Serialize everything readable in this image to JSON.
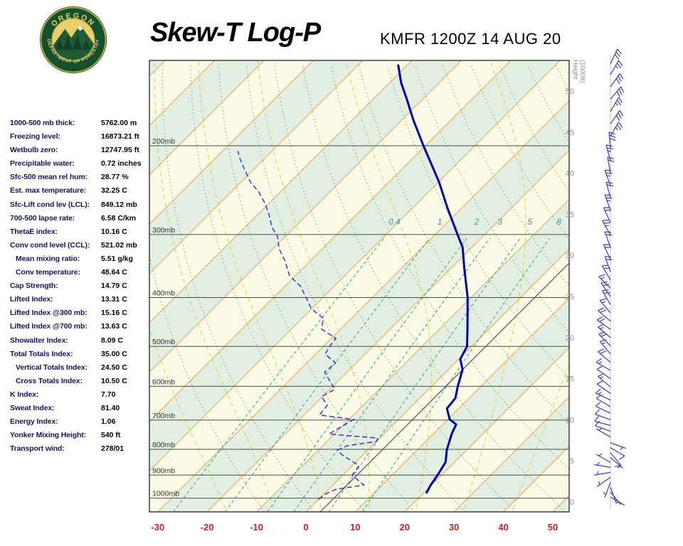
{
  "header": {
    "title": "Skew-T Log-P",
    "station_line": "KMFR 1200Z 14 AUG 20",
    "logo": {
      "arc_top": "OREGON",
      "arc_bottom": "DEPARTMENT OF FORESTRY"
    }
  },
  "indices": [
    {
      "label": "1000-500 mb thick:",
      "value": "5762.00 m",
      "indent": false
    },
    {
      "label": "Freezing level:",
      "value": "16873.21 ft",
      "indent": false
    },
    {
      "label": "Wetbulb zero:",
      "value": "12747.95 ft",
      "indent": false
    },
    {
      "label": "Precipitable water:",
      "value": "0.72 inches",
      "indent": false
    },
    {
      "label": "Sfc-500 mean rel hum:",
      "value": "28.77 %",
      "indent": false
    },
    {
      "label": "Est. max temperature:",
      "value": "32.25 C",
      "indent": false
    },
    {
      "label": "Sfc-Lift cond lev (LCL):",
      "value": "849.12 mb",
      "indent": false
    },
    {
      "label": "700-500 lapse rate:",
      "value": "6.58 C/km",
      "indent": false
    },
    {
      "label": "ThetaE index:",
      "value": "10.16 C",
      "indent": false
    },
    {
      "label": "Conv cond level (CCL):",
      "value": "521.02 mb",
      "indent": false
    },
    {
      "label": "Mean mixing ratio:",
      "value": "5.51 g/kg",
      "indent": true
    },
    {
      "label": "Conv temperature:",
      "value": "48.64 C",
      "indent": true
    },
    {
      "label": "Cap Strength:",
      "value": "14.79 C",
      "indent": false
    },
    {
      "label": "Lifted Index:",
      "value": "13.31 C",
      "indent": false
    },
    {
      "label": "Lifted Index @300 mb:",
      "value": "15.16 C",
      "indent": false
    },
    {
      "label": "Lifted Index @700 mb:",
      "value": "13.63 C",
      "indent": false
    },
    {
      "label": "Showalter Index:",
      "value": "8.09 C",
      "indent": false
    },
    {
      "label": "Total Totals Index:",
      "value": "35.00 C",
      "indent": false
    },
    {
      "label": "Vertical Totals Index:",
      "value": "24.50 C",
      "indent": true
    },
    {
      "label": "Cross Totals Index:",
      "value": "10.50 C",
      "indent": true
    },
    {
      "label": "K Index:",
      "value": "7.70",
      "indent": false
    },
    {
      "label": "Sweat Index:",
      "value": "81.40",
      "indent": false
    },
    {
      "label": "Energy Index:",
      "value": "1.06",
      "indent": false
    },
    {
      "label": "Yonker Mixing Height:",
      "value": "540 ft",
      "indent": false
    },
    {
      "label": "Transport wind:",
      "value": "278/01",
      "indent": false
    }
  ],
  "chart_data": {
    "type": "skewt",
    "station": "KMFR",
    "valid_time": "1200Z 14 AUG 20",
    "pressure_axis": {
      "levels_mb": [
        200,
        300,
        400,
        500,
        600,
        700,
        800,
        900,
        1000
      ],
      "label_suffix": "mb",
      "range_mb": [
        135,
        1065
      ]
    },
    "temp_axis_c": {
      "ticks": [
        -30,
        -20,
        -10,
        0,
        10,
        20,
        30,
        40,
        50
      ]
    },
    "height_axis": {
      "label_line1": "Height",
      "label_line2": "(1000ft)",
      "ticks_kft": [
        50,
        45,
        40,
        35,
        30,
        25,
        20,
        15,
        10,
        5,
        0
      ]
    },
    "mixing_ratio_g_kg": [
      0.4,
      1,
      2,
      3,
      5,
      8
    ],
    "moist_adiabat_starts_c": [
      -20,
      -10,
      0,
      10,
      20,
      30,
      40
    ],
    "dry_adiabat_theta_k": {
      "min": 260,
      "max": 450,
      "step": 10
    },
    "reference_isotherm_c": 2.9,
    "temperature_profile": {
      "units": [
        "mb",
        "C"
      ],
      "points": [
        [
          978,
          20.6
        ],
        [
          940,
          19.8
        ],
        [
          905,
          19.3
        ],
        [
          848,
          18.2
        ],
        [
          803,
          16.0
        ],
        [
          745,
          13.7
        ],
        [
          714,
          12.7
        ],
        [
          698,
          10.4
        ],
        [
          664,
          7.6
        ],
        [
          633,
          7.2
        ],
        [
          600,
          5.3
        ],
        [
          556,
          2.9
        ],
        [
          530,
          0.3
        ],
        [
          500,
          -0.9
        ],
        [
          455,
          -5.0
        ],
        [
          400,
          -10.7
        ],
        [
          350,
          -17.3
        ],
        [
          318,
          -21.9
        ],
        [
          300,
          -25.5
        ],
        [
          265,
          -33.1
        ],
        [
          236,
          -39.9
        ],
        [
          200,
          -50.4
        ],
        [
          178,
          -57.6
        ],
        [
          162,
          -63.1
        ],
        [
          150,
          -67.7
        ],
        [
          138,
          -72.0
        ]
      ]
    },
    "dewpoint_profile": {
      "units": [
        "mb",
        "C"
      ],
      "points": [
        [
          1005,
          0.0
        ],
        [
          978,
          0.5
        ],
        [
          960,
          1.5
        ],
        [
          942,
          6.3
        ],
        [
          900,
          1.9
        ],
        [
          862,
          1.4
        ],
        [
          820,
          -4.3
        ],
        [
          803,
          -6.1
        ],
        [
          787,
          -5.0
        ],
        [
          772,
          0.0
        ],
        [
          760,
          -0.4
        ],
        [
          746,
          -11.1
        ],
        [
          698,
          -9.1
        ],
        [
          684,
          -16.9
        ],
        [
          654,
          -17.3
        ],
        [
          629,
          -20.2
        ],
        [
          608,
          -19.0
        ],
        [
          592,
          -20.9
        ],
        [
          563,
          -24.5
        ],
        [
          539,
          -24.2
        ],
        [
          518,
          -28.1
        ],
        [
          500,
          -28.7
        ],
        [
          482,
          -29.1
        ],
        [
          462,
          -33.9
        ],
        [
          440,
          -35.7
        ],
        [
          421,
          -40.1
        ],
        [
          400,
          -43.4
        ],
        [
          380,
          -46.8
        ],
        [
          362,
          -51.2
        ],
        [
          339,
          -55.0
        ],
        [
          320,
          -58.8
        ],
        [
          303,
          -61.5
        ],
        [
          290,
          -64.6
        ],
        [
          274,
          -67.7
        ],
        [
          261,
          -70.6
        ],
        [
          247,
          -74.4
        ],
        [
          236,
          -78.1
        ],
        [
          222,
          -82.1
        ],
        [
          212,
          -85.0
        ],
        [
          205,
          -86.9
        ]
      ]
    },
    "winds": {
      "units": [
        "kft",
        "deg",
        "kt"
      ],
      "points": [
        [
          0.6,
          120,
          2
        ],
        [
          1.2,
          140,
          3
        ],
        [
          1.8,
          160,
          2
        ],
        [
          2.4,
          200,
          3
        ],
        [
          3,
          235,
          5
        ],
        [
          3.6,
          260,
          4
        ],
        [
          4.2,
          280,
          5
        ],
        [
          4.8,
          300,
          5
        ],
        [
          5.4,
          130,
          5
        ],
        [
          6,
          140,
          8
        ],
        [
          6.6,
          120,
          10
        ],
        [
          7.2,
          110,
          7
        ],
        [
          7.9,
          300,
          5
        ],
        [
          8.6,
          290,
          8
        ],
        [
          9.3,
          285,
          10
        ],
        [
          10,
          290,
          12
        ],
        [
          10.8,
          295,
          10
        ],
        [
          11.6,
          300,
          12
        ],
        [
          12.4,
          295,
          15
        ],
        [
          13.2,
          305,
          12
        ],
        [
          14,
          310,
          15
        ],
        [
          15,
          305,
          12
        ],
        [
          16,
          300,
          15
        ],
        [
          17,
          310,
          18
        ],
        [
          18,
          320,
          15
        ],
        [
          19,
          315,
          20
        ],
        [
          20,
          310,
          15
        ],
        [
          21,
          305,
          18
        ],
        [
          22,
          310,
          20
        ],
        [
          23,
          320,
          15
        ],
        [
          24,
          330,
          18
        ],
        [
          25,
          325,
          20
        ],
        [
          26,
          315,
          15
        ],
        [
          27,
          330,
          20
        ],
        [
          28,
          340,
          18
        ],
        [
          29.5,
          335,
          22
        ],
        [
          31,
          340,
          20
        ],
        [
          32.5,
          330,
          25
        ],
        [
          34,
          335,
          22
        ],
        [
          35.5,
          340,
          25
        ],
        [
          37,
          345,
          20
        ],
        [
          38.5,
          340,
          25
        ],
        [
          40,
          350,
          22
        ],
        [
          41.5,
          345,
          25
        ],
        [
          43,
          355,
          28
        ],
        [
          44.5,
          30,
          25
        ],
        [
          46,
          35,
          28
        ],
        [
          47.5,
          30,
          25
        ],
        [
          49,
          40,
          30
        ],
        [
          50.5,
          35,
          28
        ],
        [
          52,
          30,
          25
        ],
        [
          53.3,
          25,
          30
        ]
      ]
    },
    "colors": {
      "band_cream": "#fbfae6",
      "band_green": "#e3efe3",
      "isotherm": "#e5a050",
      "dry_adiabat": "#8fa05a",
      "moist_adiabat": "#d6d44e",
      "mixing_ratio": "#2f9e8f",
      "pressure_line": "#445244",
      "border": "#3a443a",
      "reference_line": "#555555",
      "temperature": "#0000a6",
      "dewpoint": "#2a2ad0",
      "wind": "#3b3bc0",
      "wind_axis": "#c4c4c4",
      "axis_temp_label": "#cc2020",
      "height_label": "#909090",
      "pressure_label": "#333333"
    }
  }
}
